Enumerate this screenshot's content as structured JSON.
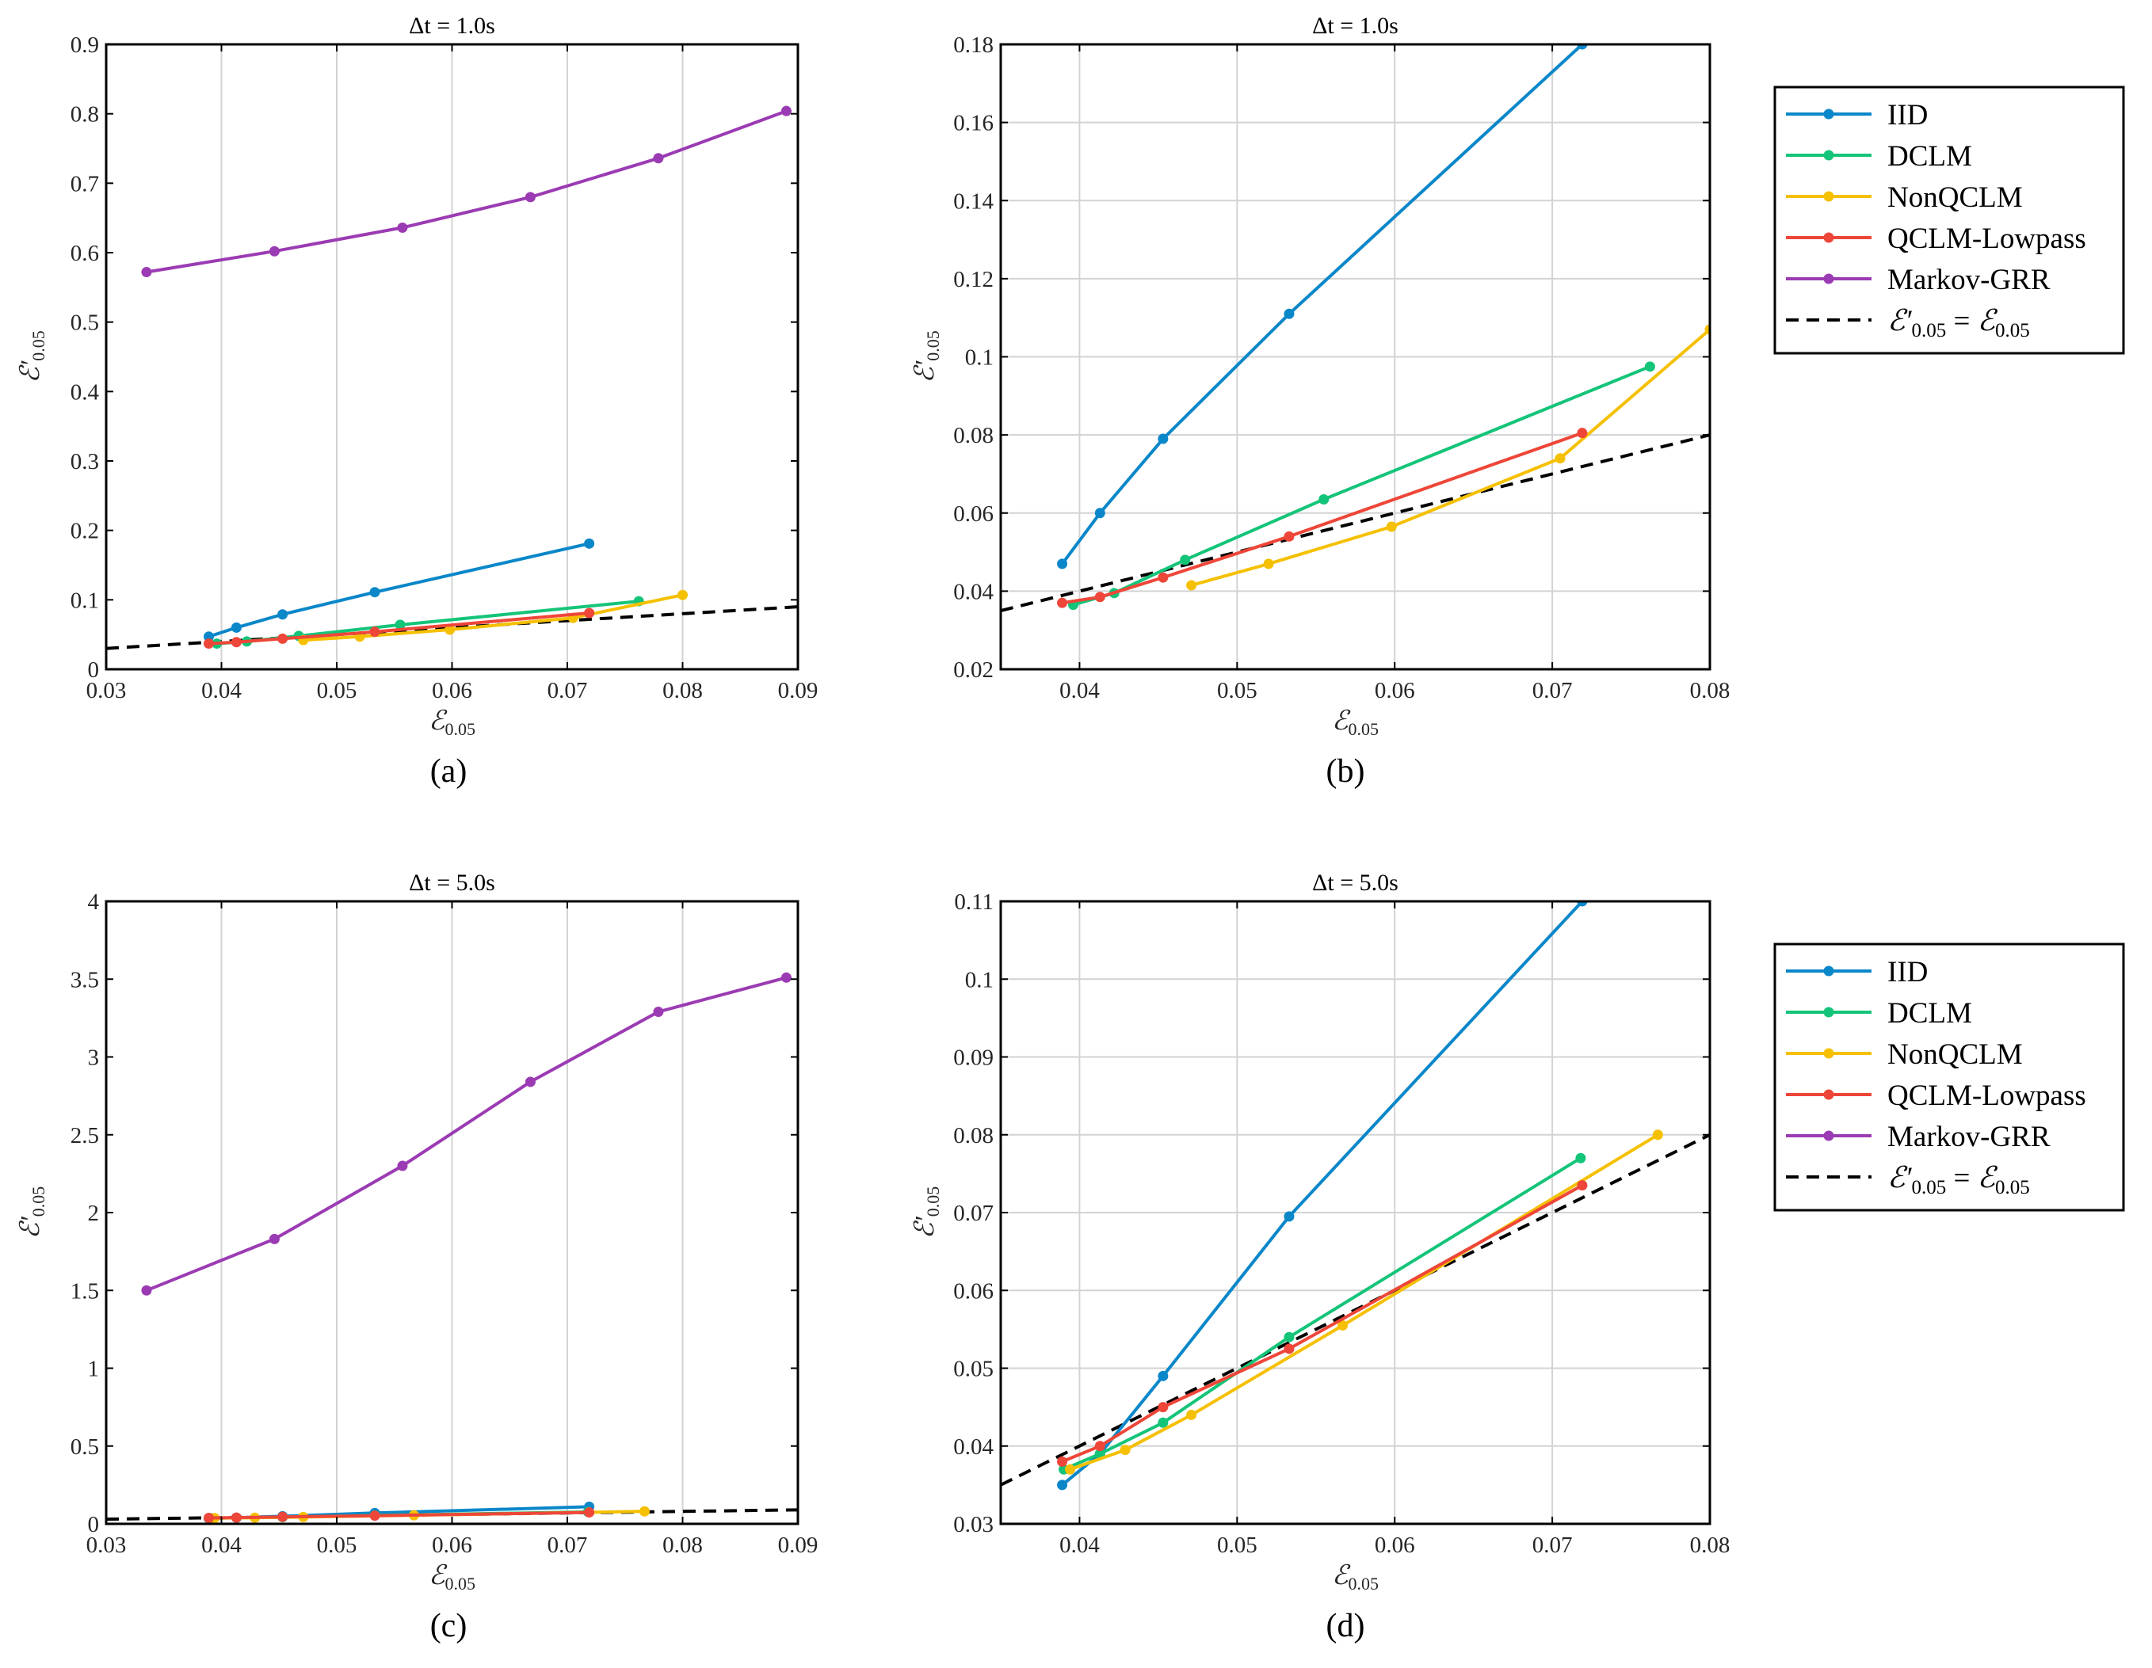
{
  "colors": {
    "IID": "#0a87c9",
    "DCLM": "#14c479",
    "NonQCLM": "#f5c000",
    "QCLM-Lowpass": "#ee4638",
    "Markov-GRR": "#9b3bb3",
    "reference": "#000000"
  },
  "legend": {
    "entries": [
      "IID",
      "DCLM",
      "NonQCLM",
      "QCLM-Lowpass",
      "Markov-GRR"
    ],
    "reference_label": "E'0.05 = E0.05"
  },
  "chart_data": [
    {
      "id": "a",
      "type": "line",
      "title": "Δt = 1.0s",
      "subtitle": "(a)",
      "xlabel": "E0.05",
      "ylabel": "E'0.05",
      "xlim": [
        0.03,
        0.09
      ],
      "ylim": [
        0,
        0.9
      ],
      "xticks": [
        "0.03",
        "0.04",
        "0.05",
        "0.06",
        "0.07",
        "0.08",
        "0.09"
      ],
      "yticks": [
        "0",
        "0.1",
        "0.2",
        "0.3",
        "0.4",
        "0.5",
        "0.6",
        "0.7",
        "0.8",
        "0.9"
      ],
      "grid": "vertical",
      "legend": false,
      "reference_line": true,
      "series": [
        {
          "name": "IID",
          "x": [
            0.0389,
            0.0413,
            0.0453,
            0.0533,
            0.0719
          ],
          "y": [
            0.047,
            0.06,
            0.079,
            0.111,
            0.181
          ]
        },
        {
          "name": "DCLM",
          "x": [
            0.0396,
            0.0422,
            0.0467,
            0.0555,
            0.0762
          ],
          "y": [
            0.037,
            0.04,
            0.048,
            0.064,
            0.098
          ]
        },
        {
          "name": "NonQCLM",
          "x": [
            0.0471,
            0.052,
            0.0598,
            0.0705,
            0.08
          ],
          "y": [
            0.042,
            0.047,
            0.057,
            0.074,
            0.107
          ]
        },
        {
          "name": "QCLM-Lowpass",
          "x": [
            0.0389,
            0.0413,
            0.0453,
            0.0533,
            0.0719
          ],
          "y": [
            0.037,
            0.039,
            0.044,
            0.054,
            0.081
          ]
        },
        {
          "name": "Markov-GRR",
          "x": [
            0.0335,
            0.0446,
            0.0557,
            0.0668,
            0.0779,
            0.089
          ],
          "y": [
            0.572,
            0.602,
            0.636,
            0.68,
            0.736,
            0.804
          ]
        }
      ]
    },
    {
      "id": "b",
      "type": "line",
      "title": "Δt = 1.0s",
      "subtitle": "(b)",
      "xlabel": "E0.05",
      "ylabel": "E'0.05",
      "xlim": [
        0.035,
        0.08
      ],
      "ylim": [
        0.02,
        0.18
      ],
      "xticks": [
        "0.04",
        "0.05",
        "0.06",
        "0.07",
        "0.08"
      ],
      "yticks": [
        "0.02",
        "0.04",
        "0.06",
        "0.08",
        "0.1",
        "0.12",
        "0.14",
        "0.16",
        "0.18"
      ],
      "grid": "both",
      "legend": true,
      "reference_line": true,
      "series": [
        {
          "name": "IID",
          "x": [
            0.0389,
            0.0413,
            0.0453,
            0.0533,
            0.0719
          ],
          "y": [
            0.047,
            0.06,
            0.079,
            0.111,
            0.18
          ]
        },
        {
          "name": "DCLM",
          "x": [
            0.0396,
            0.0422,
            0.0467,
            0.0555,
            0.0762
          ],
          "y": [
            0.0365,
            0.0395,
            0.048,
            0.0635,
            0.0975
          ]
        },
        {
          "name": "NonQCLM",
          "x": [
            0.0471,
            0.052,
            0.0598,
            0.0705,
            0.08
          ],
          "y": [
            0.0415,
            0.047,
            0.0565,
            0.074,
            0.107
          ]
        },
        {
          "name": "QCLM-Lowpass",
          "x": [
            0.0389,
            0.0413,
            0.0453,
            0.0533,
            0.0719
          ],
          "y": [
            0.037,
            0.0385,
            0.0435,
            0.054,
            0.0805
          ]
        }
      ]
    },
    {
      "id": "c",
      "type": "line",
      "title": "Δt = 5.0s",
      "subtitle": "(c)",
      "xlabel": "E0.05",
      "ylabel": "E'0.05",
      "xlim": [
        0.03,
        0.09
      ],
      "ylim": [
        0,
        4
      ],
      "xticks": [
        "0.03",
        "0.04",
        "0.05",
        "0.06",
        "0.07",
        "0.08",
        "0.09"
      ],
      "yticks": [
        "0",
        "0.5",
        "1",
        "1.5",
        "2",
        "2.5",
        "3",
        "3.5",
        "4"
      ],
      "grid": "vertical",
      "legend": false,
      "reference_line": true,
      "series": [
        {
          "name": "IID",
          "x": [
            0.0389,
            0.0413,
            0.0453,
            0.0533,
            0.0719
          ],
          "y": [
            0.035,
            0.039,
            0.049,
            0.0695,
            0.11
          ]
        },
        {
          "name": "DCLM",
          "x": [
            0.039,
            0.0413,
            0.0453,
            0.0533,
            0.0718
          ],
          "y": [
            0.037,
            0.039,
            0.043,
            0.054,
            0.077
          ]
        },
        {
          "name": "NonQCLM",
          "x": [
            0.0394,
            0.0429,
            0.0471,
            0.0567,
            0.0767
          ],
          "y": [
            0.037,
            0.0395,
            0.044,
            0.0555,
            0.08
          ]
        },
        {
          "name": "QCLM-Lowpass",
          "x": [
            0.0389,
            0.0413,
            0.0453,
            0.0533,
            0.0719
          ],
          "y": [
            0.038,
            0.04,
            0.045,
            0.0525,
            0.0735
          ]
        },
        {
          "name": "Markov-GRR",
          "x": [
            0.0335,
            0.0446,
            0.0557,
            0.0668,
            0.0779,
            0.089
          ],
          "y": [
            1.5,
            1.83,
            2.3,
            2.84,
            3.29,
            3.51
          ]
        }
      ]
    },
    {
      "id": "d",
      "type": "line",
      "title": "Δt = 5.0s",
      "subtitle": "(d)",
      "xlabel": "E0.05",
      "ylabel": "E'0.05",
      "xlim": [
        0.035,
        0.08
      ],
      "ylim": [
        0.03,
        0.11
      ],
      "xticks": [
        "0.04",
        "0.05",
        "0.06",
        "0.07",
        "0.08"
      ],
      "yticks": [
        "0.03",
        "0.04",
        "0.05",
        "0.06",
        "0.07",
        "0.08",
        "0.09",
        "0.1",
        "0.11"
      ],
      "grid": "both",
      "legend": true,
      "reference_line": true,
      "series": [
        {
          "name": "IID",
          "x": [
            0.0389,
            0.0413,
            0.0453,
            0.0533,
            0.0719
          ],
          "y": [
            0.035,
            0.039,
            0.049,
            0.0695,
            0.11
          ]
        },
        {
          "name": "DCLM",
          "x": [
            0.039,
            0.0413,
            0.0453,
            0.0533,
            0.0718
          ],
          "y": [
            0.037,
            0.039,
            0.043,
            0.054,
            0.077
          ]
        },
        {
          "name": "NonQCLM",
          "x": [
            0.0394,
            0.0429,
            0.0471,
            0.0567,
            0.0767
          ],
          "y": [
            0.037,
            0.0395,
            0.044,
            0.0555,
            0.08
          ]
        },
        {
          "name": "QCLM-Lowpass",
          "x": [
            0.0389,
            0.0413,
            0.0453,
            0.0533,
            0.0719
          ],
          "y": [
            0.038,
            0.04,
            0.045,
            0.0525,
            0.0735
          ]
        }
      ]
    }
  ]
}
